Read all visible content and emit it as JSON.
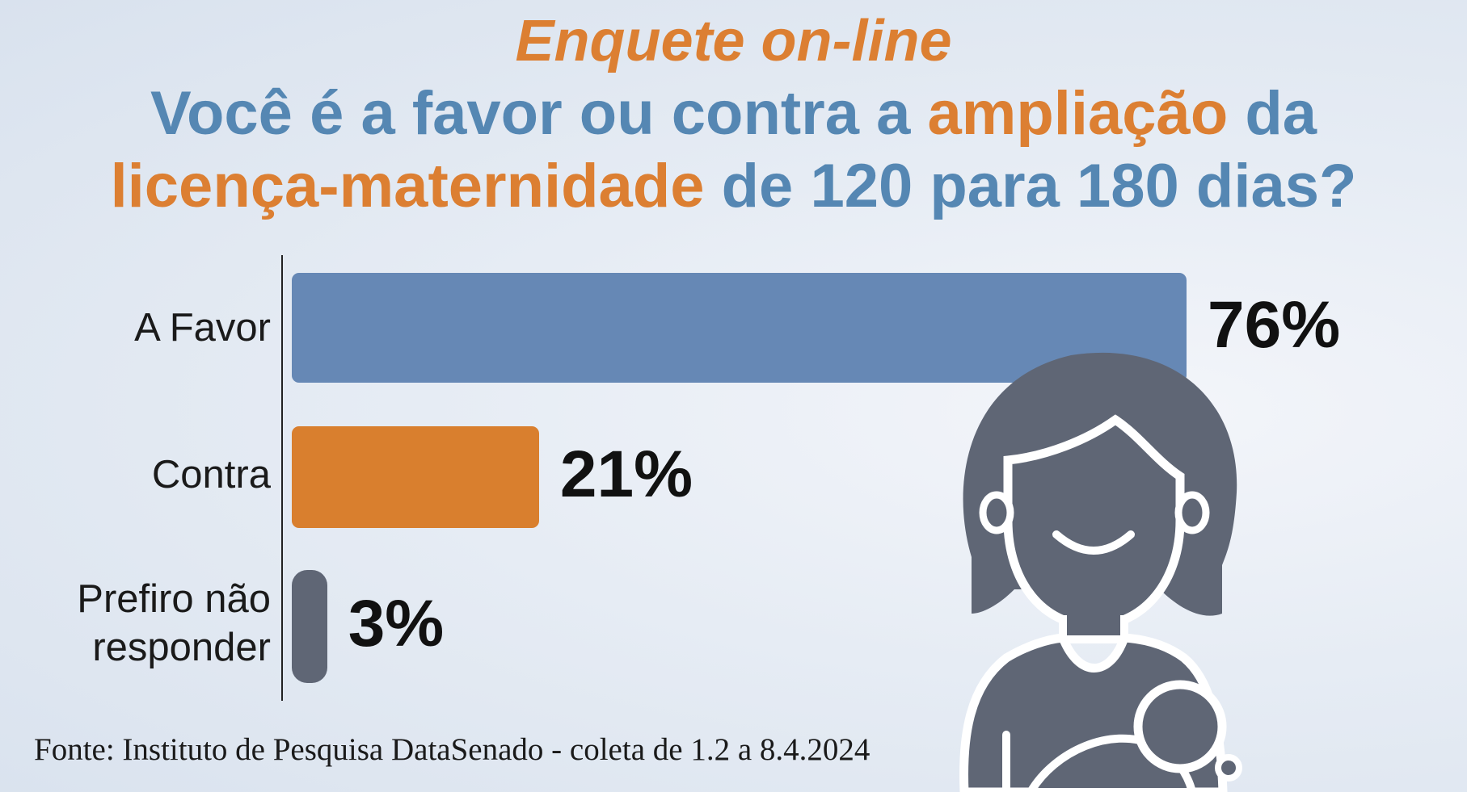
{
  "kicker": "Enquete on-line",
  "question": {
    "part1": "Você é a favor ou contra a ",
    "highlight1": "ampliação",
    "part2": " da ",
    "highlight2": "licença-maternidade",
    "part3": " de 120 para 180 dias?"
  },
  "source": "Fonte: Instituto de Pesquisa DataSenado - coleta de 1.2 a 8.4.2024",
  "colors": {
    "accent_orange": "#dc7f32",
    "title_blue": "#5587b3",
    "bar_favor": "#6688b5",
    "bar_contra": "#d97f2e",
    "bar_nao": "#5f6675",
    "icon": "#5f6675"
  },
  "icon": "mother-holding-baby-icon",
  "chart_data": {
    "type": "bar",
    "orientation": "horizontal",
    "categories": [
      "A Favor",
      "Contra",
      "Prefiro não responder"
    ],
    "category_lines": [
      [
        "A Favor"
      ],
      [
        "Contra"
      ],
      [
        "Prefiro não",
        "responder"
      ]
    ],
    "values": [
      76,
      21,
      3
    ],
    "value_labels": [
      "76%",
      "21%",
      "3%"
    ],
    "unit": "%",
    "xlim": [
      0,
      76
    ],
    "grid": false,
    "legend": "none"
  }
}
